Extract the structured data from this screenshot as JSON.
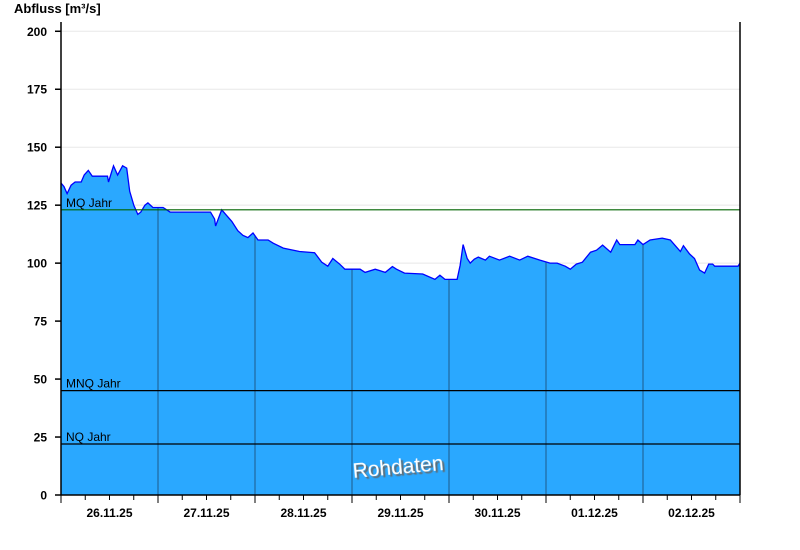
{
  "chart_data": {
    "type": "area",
    "ylabel": "Abfluss [m³/s]",
    "ylim": [
      0,
      204
    ],
    "yticks": [
      0,
      25,
      50,
      75,
      100,
      125,
      150,
      175,
      200
    ],
    "xlim": [
      "2025-11-26T00:00",
      "2025-12-03T00:00"
    ],
    "xtick_labels": [
      "26.11.25",
      "27.11.25",
      "28.11.25",
      "29.11.25",
      "30.11.25",
      "01.12.25",
      "02.12.25"
    ],
    "grid": true,
    "watermark": "Rohdaten",
    "colors": {
      "fill": "#2aa8ff",
      "line": "#0000ff",
      "day_lines": "#1e5a8a",
      "mq": "#006400",
      "mnq": "#000000",
      "nq": "#000000",
      "grid": "#e8e8e8"
    },
    "reference_lines": [
      {
        "name": "MQ Jahr",
        "value": 123,
        "color": "#006400"
      },
      {
        "name": "MNQ Jahr",
        "value": 45,
        "color": "#000000"
      },
      {
        "name": "NQ Jahr",
        "value": 22,
        "color": "#000000"
      }
    ],
    "series": [
      {
        "points": [
          [
            "2025-11-26T00:00",
            134.5
          ],
          [
            "2025-11-26T00:45",
            133
          ],
          [
            "2025-11-26T01:30",
            130
          ],
          [
            "2025-11-26T02:30",
            133.6
          ],
          [
            "2025-11-26T03:30",
            135
          ],
          [
            "2025-11-26T05:00",
            135
          ],
          [
            "2025-11-26T05:45",
            138
          ],
          [
            "2025-11-26T06:45",
            140
          ],
          [
            "2025-11-26T07:45",
            137.5
          ],
          [
            "2025-11-26T11:30",
            137.5
          ],
          [
            "2025-11-26T11:45",
            135
          ],
          [
            "2025-11-26T13:00",
            142
          ],
          [
            "2025-11-26T14:00",
            138
          ],
          [
            "2025-11-26T15:15",
            142
          ],
          [
            "2025-11-26T16:15",
            141
          ],
          [
            "2025-11-26T17:00",
            131
          ],
          [
            "2025-11-26T18:00",
            125
          ],
          [
            "2025-11-26T19:00",
            121
          ],
          [
            "2025-11-26T19:45",
            122
          ],
          [
            "2025-11-26T20:45",
            125
          ],
          [
            "2025-11-26T21:30",
            126
          ],
          [
            "2025-11-26T22:45",
            124
          ],
          [
            "2025-11-27T01:15",
            124
          ],
          [
            "2025-11-27T03:00",
            122
          ],
          [
            "2025-11-27T13:00",
            122
          ],
          [
            "2025-11-27T14:00",
            119
          ],
          [
            "2025-11-27T14:15",
            116
          ],
          [
            "2025-11-27T15:45",
            123
          ],
          [
            "2025-11-27T16:45",
            121
          ],
          [
            "2025-11-27T18:15",
            118
          ],
          [
            "2025-11-27T19:45",
            114
          ],
          [
            "2025-11-27T21:00",
            112
          ],
          [
            "2025-11-27T22:15",
            111
          ],
          [
            "2025-11-27T23:30",
            113
          ],
          [
            "2025-11-28T00:45",
            110
          ],
          [
            "2025-11-28T03:15",
            110
          ],
          [
            "2025-11-28T04:30",
            108.6
          ],
          [
            "2025-11-28T07:00",
            106.5
          ],
          [
            "2025-11-28T11:00",
            105
          ],
          [
            "2025-11-28T14:45",
            104.5
          ],
          [
            "2025-11-28T16:30",
            100.4
          ],
          [
            "2025-11-28T18:00",
            98.7
          ],
          [
            "2025-11-28T19:15",
            102
          ],
          [
            "2025-11-28T21:00",
            99.5
          ],
          [
            "2025-11-28T22:15",
            97.4
          ],
          [
            "2025-11-29T02:00",
            97.4
          ],
          [
            "2025-11-29T03:15",
            96
          ],
          [
            "2025-11-29T05:45",
            97.4
          ],
          [
            "2025-11-29T08:15",
            96
          ],
          [
            "2025-11-29T10:00",
            98.5
          ],
          [
            "2025-11-29T11:00",
            97.4
          ],
          [
            "2025-11-29T13:00",
            95.7
          ],
          [
            "2025-11-29T17:30",
            95.3
          ],
          [
            "2025-11-29T20:30",
            93
          ],
          [
            "2025-11-29T21:45",
            94.8
          ],
          [
            "2025-11-29T23:00",
            93
          ],
          [
            "2025-11-30T02:00",
            93
          ],
          [
            "2025-11-30T02:45",
            99
          ],
          [
            "2025-11-30T03:30",
            108
          ],
          [
            "2025-11-30T04:30",
            102
          ],
          [
            "2025-11-30T05:15",
            100
          ],
          [
            "2025-11-30T06:15",
            101.7
          ],
          [
            "2025-11-30T07:15",
            102.6
          ],
          [
            "2025-11-30T09:00",
            101.3
          ],
          [
            "2025-11-30T10:00",
            103
          ],
          [
            "2025-11-30T12:30",
            101.3
          ],
          [
            "2025-11-30T15:00",
            103
          ],
          [
            "2025-11-30T17:30",
            101.3
          ],
          [
            "2025-11-30T19:30",
            103
          ],
          [
            "2025-11-30T22:30",
            101.3
          ],
          [
            "2025-12-01T01:00",
            100
          ],
          [
            "2025-12-01T02:45",
            100
          ],
          [
            "2025-12-01T04:45",
            98.7
          ],
          [
            "2025-12-01T06:00",
            97.4
          ],
          [
            "2025-12-01T07:30",
            99.6
          ],
          [
            "2025-12-01T09:00",
            100.4
          ],
          [
            "2025-12-01T11:00",
            104.7
          ],
          [
            "2025-12-01T12:30",
            105.6
          ],
          [
            "2025-12-01T14:00",
            107.8
          ],
          [
            "2025-12-01T16:00",
            104.7
          ],
          [
            "2025-12-01T17:30",
            110
          ],
          [
            "2025-12-01T18:15",
            108
          ],
          [
            "2025-12-01T22:00",
            108
          ],
          [
            "2025-12-01T22:45",
            110
          ],
          [
            "2025-12-02T00:00",
            108
          ],
          [
            "2025-12-02T01:45",
            110
          ],
          [
            "2025-12-02T04:45",
            110.8
          ],
          [
            "2025-12-02T06:45",
            110
          ],
          [
            "2025-12-02T08:00",
            107.5
          ],
          [
            "2025-12-02T09:15",
            105
          ],
          [
            "2025-12-02T10:00",
            107.5
          ],
          [
            "2025-12-02T11:30",
            104
          ],
          [
            "2025-12-02T12:45",
            102
          ],
          [
            "2025-12-02T14:00",
            97
          ],
          [
            "2025-12-02T15:15",
            95.7
          ],
          [
            "2025-12-02T16:15",
            99.6
          ],
          [
            "2025-12-02T17:15",
            99.6
          ],
          [
            "2025-12-02T17:45",
            98.7
          ],
          [
            "2025-12-02T23:30",
            98.7
          ],
          [
            "2025-12-03T00:00",
            100
          ]
        ]
      }
    ]
  }
}
